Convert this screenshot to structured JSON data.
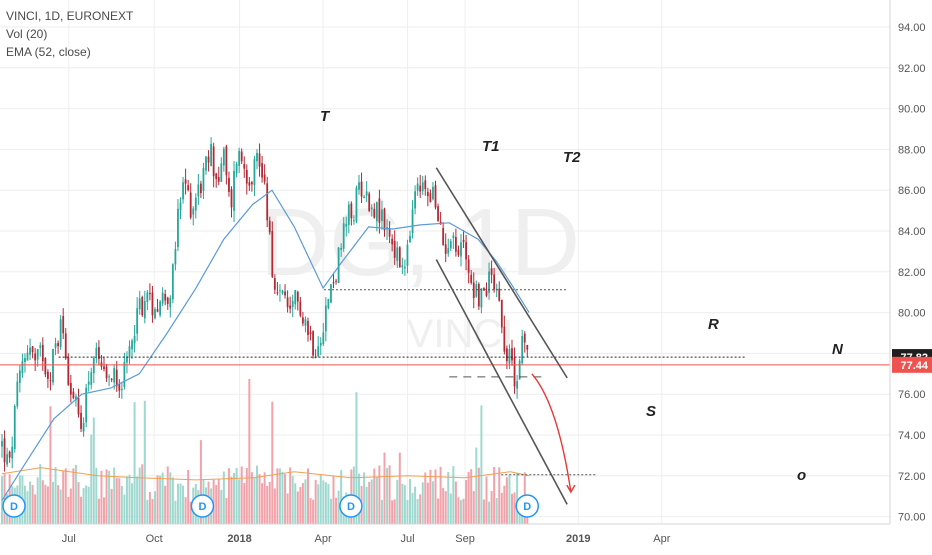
{
  "legend": {
    "symbol_line": "VINCI, 1D, EURONEXT",
    "volume_line": "Vol (20)",
    "ema_line": "EMA (52, close)"
  },
  "watermark": {
    "symbol": "DG, 1D",
    "name": "VINCI"
  },
  "colors": {
    "up": "#26a69a",
    "down": "#b22834",
    "volume_up": "#9fd8cf",
    "volume_down": "#f2a3aa",
    "ema": "#5b9bd5",
    "vol_ma": "#f0a050",
    "price_line": "#ef5350",
    "channel": "#555555",
    "arrow": "#e53935",
    "badge": "#2196f3"
  },
  "annotations": {
    "T": "T",
    "T1": "T1",
    "T2": "T2",
    "R": "R",
    "N": "N",
    "S": "S",
    "o": "o"
  },
  "event_badge": "D",
  "chart_data": {
    "type": "candlestick",
    "series_name": "VINCI, 1D, EURONEXT",
    "x_ticks": [
      "Jul",
      "Oct",
      "2018",
      "Apr",
      "Jul",
      "Sep",
      "2019",
      "Apr"
    ],
    "y_ticks": [
      "94.00",
      "92.00",
      "90.00",
      "88.00",
      "86.00",
      "84.00",
      "82.00",
      "80.00",
      "78.00",
      "76.00",
      "74.00",
      "72.00",
      "70.00"
    ],
    "ylim": [
      69.6,
      95.2
    ],
    "price_labels": {
      "level_line": "77.82",
      "last_price": "77.44"
    },
    "grid": true,
    "path_points": [
      [
        "2017-04-20",
        73.5
      ],
      [
        "2017-04-28",
        72.3
      ],
      [
        "2017-05-05",
        75.6
      ],
      [
        "2017-05-12",
        77.5
      ],
      [
        "2017-05-19",
        78.6
      ],
      [
        "2017-05-26",
        77.4
      ],
      [
        "2017-06-02",
        78.2
      ],
      [
        "2017-06-09",
        76.9
      ],
      [
        "2017-06-16",
        78.1
      ],
      [
        "2017-06-23",
        79.6
      ],
      [
        "2017-06-30",
        77.2
      ],
      [
        "2017-07-07",
        75.6
      ],
      [
        "2017-07-14",
        74.2
      ],
      [
        "2017-07-21",
        76.6
      ],
      [
        "2017-07-28",
        77.9
      ],
      [
        "2017-08-04",
        77.2
      ],
      [
        "2017-08-11",
        76.2
      ],
      [
        "2017-08-18",
        77.4
      ],
      [
        "2017-08-25",
        76.6
      ],
      [
        "2017-09-01",
        77.1
      ],
      [
        "2017-09-08",
        79.2
      ],
      [
        "2017-09-15",
        80.3
      ],
      [
        "2017-09-22",
        80.7
      ],
      [
        "2017-09-29",
        80.4
      ],
      [
        "2017-10-06",
        80.6
      ],
      [
        "2017-10-13",
        80.9
      ],
      [
        "2017-10-20",
        81.2
      ],
      [
        "2017-10-27",
        84.8
      ],
      [
        "2017-11-03",
        86.4
      ],
      [
        "2017-11-10",
        85.1
      ],
      [
        "2017-11-17",
        86.0
      ],
      [
        "2017-11-24",
        86.8
      ],
      [
        "2017-12-01",
        87.9
      ],
      [
        "2017-12-08",
        86.4
      ],
      [
        "2017-12-15",
        87.6
      ],
      [
        "2017-12-22",
        85.0
      ],
      [
        "2017-12-29",
        87.8
      ],
      [
        "2018-01-05",
        87.4
      ],
      [
        "2018-01-12",
        86.6
      ],
      [
        "2018-01-19",
        87.6
      ],
      [
        "2018-01-26",
        87.0
      ],
      [
        "2018-02-02",
        84.2
      ],
      [
        "2018-02-09",
        80.2
      ],
      [
        "2018-02-16",
        81.5
      ],
      [
        "2018-02-23",
        79.3
      ],
      [
        "2018-03-02",
        80.6
      ],
      [
        "2018-03-09",
        80.3
      ],
      [
        "2018-03-16",
        79.1
      ],
      [
        "2018-03-23",
        78.3
      ],
      [
        "2018-03-30",
        79.2
      ],
      [
        "2018-04-06",
        80.5
      ],
      [
        "2018-04-13",
        81.7
      ],
      [
        "2018-04-20",
        83.1
      ],
      [
        "2018-04-27",
        84.6
      ],
      [
        "2018-05-04",
        84.9
      ],
      [
        "2018-05-11",
        86.5
      ],
      [
        "2018-05-18",
        85.6
      ],
      [
        "2018-05-25",
        85.3
      ],
      [
        "2018-06-01",
        84.7
      ],
      [
        "2018-06-08",
        84.2
      ],
      [
        "2018-06-15",
        83.4
      ],
      [
        "2018-06-22",
        82.3
      ],
      [
        "2018-06-29",
        82.0
      ],
      [
        "2018-07-06",
        84.9
      ],
      [
        "2018-07-13",
        86.2
      ],
      [
        "2018-07-20",
        85.9
      ],
      [
        "2018-07-27",
        86.1
      ],
      [
        "2018-08-03",
        84.3
      ],
      [
        "2018-08-10",
        83.2
      ],
      [
        "2018-08-17",
        84.1
      ],
      [
        "2018-08-24",
        82.7
      ],
      [
        "2018-08-31",
        83.6
      ],
      [
        "2018-09-07",
        81.6
      ],
      [
        "2018-09-14",
        80.9
      ],
      [
        "2018-09-21",
        80.7
      ],
      [
        "2018-09-28",
        82.1
      ],
      [
        "2018-10-05",
        81.5
      ],
      [
        "2018-10-12",
        79.0
      ],
      [
        "2018-10-19",
        77.6
      ],
      [
        "2018-10-26",
        76.8
      ],
      [
        "2018-11-02",
        78.6
      ],
      [
        "2018-11-09",
        77.5
      ]
    ],
    "ema_points": [
      [
        "2017-04-20",
        70.8
      ],
      [
        "2017-05-15",
        72.6
      ],
      [
        "2017-06-15",
        74.8
      ],
      [
        "2017-07-15",
        76.0
      ],
      [
        "2017-08-15",
        76.3
      ],
      [
        "2017-09-15",
        77.0
      ],
      [
        "2017-10-15",
        79.0
      ],
      [
        "2017-11-15",
        81.2
      ],
      [
        "2017-12-15",
        83.6
      ],
      [
        "2018-01-15",
        85.3
      ],
      [
        "2018-02-05",
        86.0
      ],
      [
        "2018-03-01",
        84.2
      ],
      [
        "2018-04-01",
        81.2
      ],
      [
        "2018-04-20",
        82.4
      ],
      [
        "2018-05-20",
        84.2
      ],
      [
        "2018-06-15",
        84.1
      ],
      [
        "2018-07-15",
        84.3
      ],
      [
        "2018-08-15",
        84.4
      ],
      [
        "2018-09-15",
        83.6
      ],
      [
        "2018-10-05",
        82.5
      ],
      [
        "2018-10-25",
        81.1
      ],
      [
        "2018-11-09",
        80.0
      ]
    ],
    "volume_ma_points": [
      [
        "2017-04-20",
        72.1
      ],
      [
        "2017-06-01",
        72.4
      ],
      [
        "2017-08-01",
        72.0
      ],
      [
        "2017-09-15",
        71.9
      ],
      [
        "2017-11-15",
        71.8
      ],
      [
        "2018-01-15",
        71.9
      ],
      [
        "2018-03-01",
        72.2
      ],
      [
        "2018-05-01",
        71.9
      ],
      [
        "2018-07-01",
        72.0
      ],
      [
        "2018-09-01",
        71.9
      ],
      [
        "2018-10-20",
        72.2
      ],
      [
        "2018-11-09",
        72.0
      ]
    ],
    "levels": [
      {
        "label": "N",
        "value": 77.82,
        "from": "2017-06-20",
        "to": "2019-07-01",
        "style": "dotted"
      },
      {
        "label": "",
        "value": 81.12,
        "from": "2018-04-02",
        "to": "2018-12-20",
        "style": "dotted"
      },
      {
        "label": "",
        "value": 76.85,
        "from": "2018-08-15",
        "to": "2018-11-25",
        "style": "dashed"
      },
      {
        "label": "o",
        "value": 72.05,
        "from": "2018-10-10",
        "to": "2019-01-20",
        "style": "dotted"
      }
    ],
    "last_price": 77.44,
    "channel": {
      "upper": [
        [
          "2018-08-01",
          87.1
        ],
        [
          "2018-12-20",
          76.8
        ]
      ],
      "lower": [
        [
          "2018-08-01",
          82.6
        ],
        [
          "2018-12-20",
          70.6
        ]
      ]
    },
    "forecast_arrow": [
      [
        "2018-11-12",
        77.0
      ],
      [
        "2018-12-10",
        75.5
      ],
      [
        "2018-12-24",
        71.2
      ]
    ],
    "event_dates": [
      "2017-04-22",
      "2017-11-22",
      "2018-05-01",
      "2018-11-07"
    ]
  }
}
